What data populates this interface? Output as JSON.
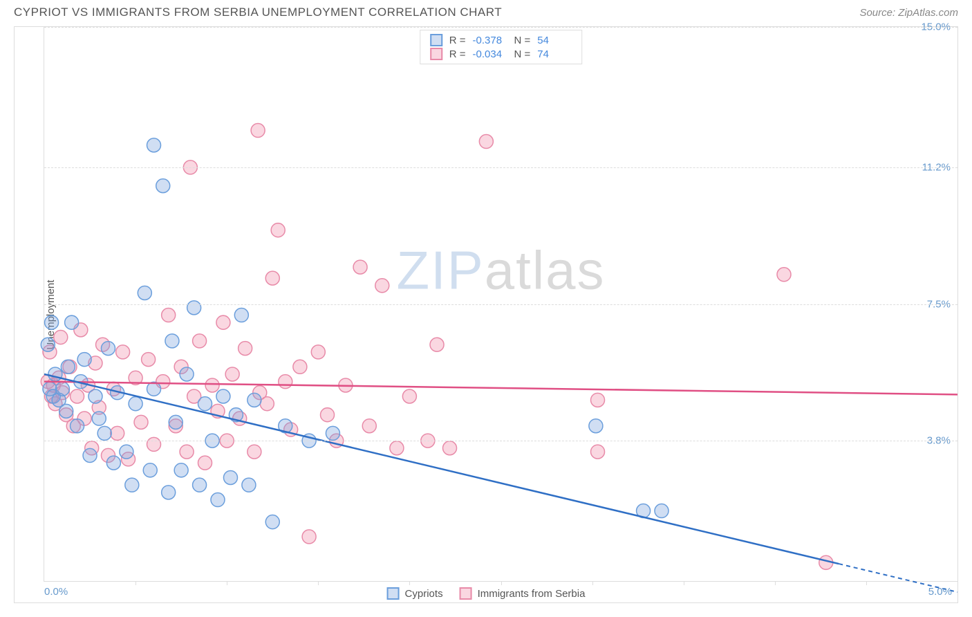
{
  "header": {
    "title": "CYPRIOT VS IMMIGRANTS FROM SERBIA UNEMPLOYMENT CORRELATION CHART",
    "source": "Source: ZipAtlas.com"
  },
  "watermark": {
    "part1": "ZIP",
    "part2": "atlas"
  },
  "chart": {
    "type": "scatter",
    "ylabel": "Unemployment",
    "xlim": [
      0,
      5.0
    ],
    "ylim": [
      0,
      15.0
    ],
    "x_origin_label": "0.0%",
    "x_max_label": "5.0%",
    "y_ticks": [
      3.8,
      7.5,
      11.2,
      15.0
    ],
    "y_tick_labels": [
      "3.8%",
      "7.5%",
      "11.2%",
      "15.0%"
    ],
    "x_tick_positions": [
      0.5,
      1.0,
      1.5,
      2.0,
      2.5,
      3.0,
      3.5,
      4.0,
      4.5
    ],
    "grid_color": "#dddddd",
    "background_color": "#ffffff",
    "axis_label_color": "#6699cc",
    "marker_radius": 10,
    "marker_stroke_width": 1.5,
    "series": [
      {
        "id": "cypriots",
        "label": "Cypriots",
        "fill": "rgba(120,160,220,0.35)",
        "stroke": "#6a9edc",
        "line_color": "#2f6fc5",
        "R": "-0.378",
        "N": "54",
        "trend": {
          "y_at_x0": 5.6,
          "y_at_x5": -0.3,
          "dash_after_x": 4.35
        },
        "points": [
          [
            0.02,
            6.4
          ],
          [
            0.03,
            5.2
          ],
          [
            0.04,
            7.0
          ],
          [
            0.05,
            5.0
          ],
          [
            0.06,
            5.6
          ],
          [
            0.08,
            4.9
          ],
          [
            0.1,
            5.2
          ],
          [
            0.12,
            4.6
          ],
          [
            0.13,
            5.8
          ],
          [
            0.15,
            7.0
          ],
          [
            0.18,
            4.2
          ],
          [
            0.2,
            5.4
          ],
          [
            0.22,
            6.0
          ],
          [
            0.25,
            3.4
          ],
          [
            0.28,
            5.0
          ],
          [
            0.3,
            4.4
          ],
          [
            0.33,
            4.0
          ],
          [
            0.35,
            6.3
          ],
          [
            0.38,
            3.2
          ],
          [
            0.4,
            5.1
          ],
          [
            0.45,
            3.5
          ],
          [
            0.48,
            2.6
          ],
          [
            0.5,
            4.8
          ],
          [
            0.55,
            7.8
          ],
          [
            0.58,
            3.0
          ],
          [
            0.6,
            5.2
          ],
          [
            0.6,
            11.8
          ],
          [
            0.65,
            10.7
          ],
          [
            0.68,
            2.4
          ],
          [
            0.7,
            6.5
          ],
          [
            0.72,
            4.3
          ],
          [
            0.75,
            3.0
          ],
          [
            0.78,
            5.6
          ],
          [
            0.82,
            7.4
          ],
          [
            0.85,
            2.6
          ],
          [
            0.88,
            4.8
          ],
          [
            0.92,
            3.8
          ],
          [
            0.95,
            2.2
          ],
          [
            0.98,
            5.0
          ],
          [
            1.02,
            2.8
          ],
          [
            1.05,
            4.5
          ],
          [
            1.08,
            7.2
          ],
          [
            1.12,
            2.6
          ],
          [
            1.15,
            4.9
          ],
          [
            1.25,
            1.6
          ],
          [
            1.32,
            4.2
          ],
          [
            1.45,
            3.8
          ],
          [
            1.58,
            4.0
          ],
          [
            3.02,
            4.2
          ],
          [
            3.28,
            1.9
          ],
          [
            3.38,
            1.9
          ]
        ]
      },
      {
        "id": "serbia",
        "label": "Immigrants from Serbia",
        "fill": "rgba(240,140,170,0.35)",
        "stroke": "#e88aa8",
        "line_color": "#e04f84",
        "R": "-0.034",
        "N": "74",
        "trend": {
          "y_at_x0": 5.4,
          "y_at_x5": 5.05
        },
        "points": [
          [
            0.02,
            5.4
          ],
          [
            0.03,
            6.2
          ],
          [
            0.04,
            5.0
          ],
          [
            0.05,
            5.3
          ],
          [
            0.06,
            4.8
          ],
          [
            0.08,
            5.5
          ],
          [
            0.09,
            6.6
          ],
          [
            0.1,
            5.1
          ],
          [
            0.12,
            4.5
          ],
          [
            0.14,
            5.8
          ],
          [
            0.16,
            4.2
          ],
          [
            0.18,
            5.0
          ],
          [
            0.2,
            6.8
          ],
          [
            0.22,
            4.4
          ],
          [
            0.24,
            5.3
          ],
          [
            0.26,
            3.6
          ],
          [
            0.28,
            5.9
          ],
          [
            0.3,
            4.7
          ],
          [
            0.32,
            6.4
          ],
          [
            0.35,
            3.4
          ],
          [
            0.38,
            5.2
          ],
          [
            0.4,
            4.0
          ],
          [
            0.43,
            6.2
          ],
          [
            0.46,
            3.3
          ],
          [
            0.5,
            5.5
          ],
          [
            0.53,
            4.3
          ],
          [
            0.57,
            6.0
          ],
          [
            0.6,
            3.7
          ],
          [
            0.65,
            5.4
          ],
          [
            0.68,
            7.2
          ],
          [
            0.72,
            4.2
          ],
          [
            0.75,
            5.8
          ],
          [
            0.78,
            3.5
          ],
          [
            0.8,
            11.2
          ],
          [
            0.82,
            5.0
          ],
          [
            0.85,
            6.5
          ],
          [
            0.88,
            3.2
          ],
          [
            0.92,
            5.3
          ],
          [
            0.95,
            4.6
          ],
          [
            0.98,
            7.0
          ],
          [
            1.0,
            3.8
          ],
          [
            1.03,
            5.6
          ],
          [
            1.07,
            4.4
          ],
          [
            1.1,
            6.3
          ],
          [
            1.15,
            3.5
          ],
          [
            1.18,
            5.1
          ],
          [
            1.17,
            12.2
          ],
          [
            1.22,
            4.8
          ],
          [
            1.25,
            8.2
          ],
          [
            1.28,
            9.5
          ],
          [
            1.32,
            5.4
          ],
          [
            1.35,
            4.1
          ],
          [
            1.4,
            5.8
          ],
          [
            1.45,
            1.2
          ],
          [
            1.5,
            6.2
          ],
          [
            1.55,
            4.5
          ],
          [
            1.6,
            3.8
          ],
          [
            1.65,
            5.3
          ],
          [
            1.73,
            8.5
          ],
          [
            1.78,
            4.2
          ],
          [
            1.85,
            8.0
          ],
          [
            1.93,
            3.6
          ],
          [
            2.0,
            5.0
          ],
          [
            2.1,
            3.8
          ],
          [
            2.15,
            6.4
          ],
          [
            2.22,
            3.6
          ],
          [
            2.42,
            11.9
          ],
          [
            3.03,
            4.9
          ],
          [
            3.03,
            3.5
          ],
          [
            4.05,
            8.3
          ],
          [
            4.28,
            0.5
          ]
        ]
      }
    ],
    "stats_box": {
      "R_label": "R =",
      "N_label": "N ="
    }
  }
}
